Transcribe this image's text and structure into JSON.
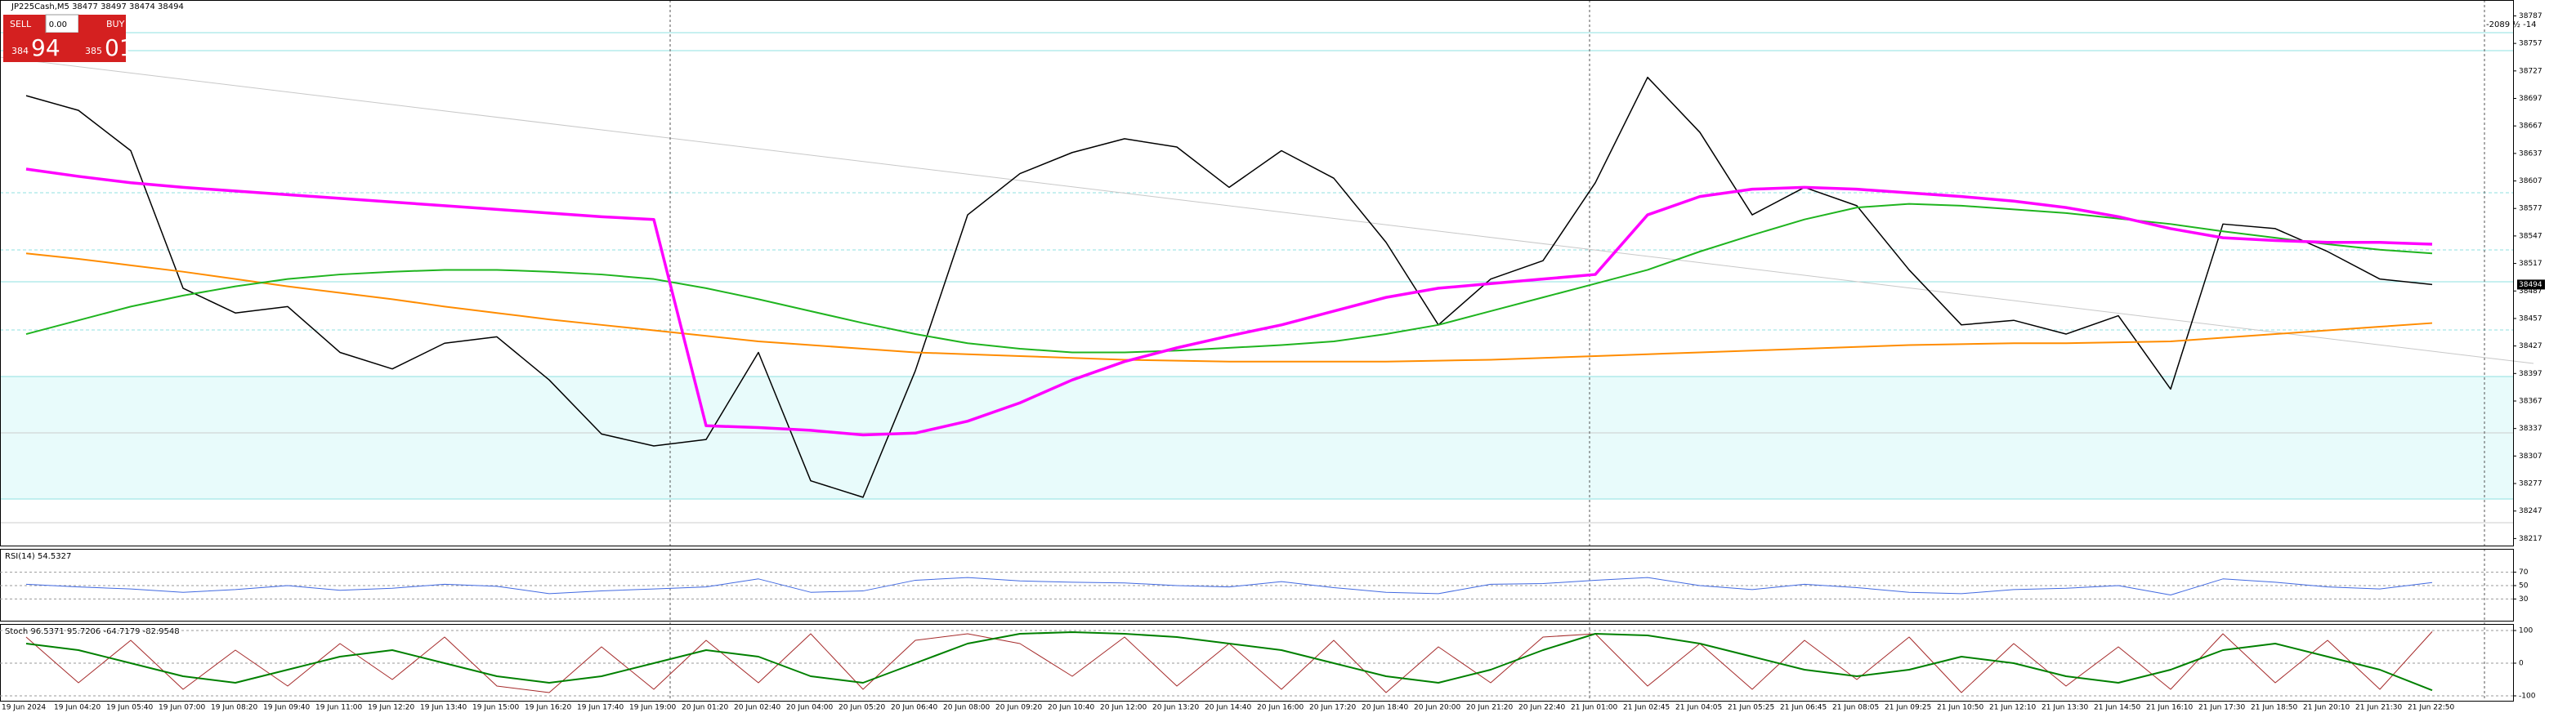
{
  "ui": {
    "sell": "SELL",
    "buy": "BUY",
    "lot": "0.00",
    "bid_big": "384",
    "bid_small": "94",
    "ask_big": "385",
    "ask_small": "01",
    "corner_info": "-2089 ½ -14"
  },
  "chart_data": [
    {
      "type": "line",
      "title": "JP225Cash,M5  38477 38497 38474 38494",
      "x": [
        "19 Jun 2024",
        "19 Jun 04:20",
        "19 Jun 05:40",
        "19 Jun 07:00",
        "19 Jun 08:20",
        "19 Jun 09:40",
        "19 Jun 11:00",
        "19 Jun 12:20",
        "19 Jun 13:40",
        "19 Jun 15:00",
        "19 Jun 16:20",
        "19 Jun 17:40",
        "19 Jun 19:00",
        "20 Jun 01:20",
        "20 Jun 02:40",
        "20 Jun 04:00",
        "20 Jun 05:20",
        "20 Jun 06:40",
        "20 Jun 08:00",
        "20 Jun 09:20",
        "20 Jun 10:40",
        "20 Jun 12:00",
        "20 Jun 13:20",
        "20 Jun 14:40",
        "20 Jun 16:00",
        "20 Jun 17:20",
        "20 Jun 18:40",
        "20 Jun 20:00",
        "20 Jun 21:20",
        "20 Jun 22:40",
        "21 Jun 01:00",
        "21 Jun 02:45",
        "21 Jun 04:05",
        "21 Jun 05:25",
        "21 Jun 06:45",
        "21 Jun 08:05",
        "21 Jun 09:25",
        "21 Jun 10:50",
        "21 Jun 12:10",
        "21 Jun 13:30",
        "21 Jun 14:50",
        "21 Jun 16:10",
        "21 Jun 17:30",
        "21 Jun 18:50",
        "21 Jun 20:10",
        "21 Jun 21:30",
        "21 Jun 22:50"
      ],
      "series": [
        {
          "color": "#000000",
          "width": 1.5,
          "values": [
            38700,
            38684,
            38640,
            38490,
            38463,
            38470,
            38420,
            38402,
            38430,
            38437,
            38390,
            38331,
            38318,
            38325,
            38420,
            38280,
            38262,
            38400,
            38570,
            38615,
            38638,
            38653,
            38644,
            38600,
            38640,
            38610,
            38540,
            38450,
            38500,
            38520,
            38605,
            38720,
            38660,
            38570,
            38600,
            38580,
            38510,
            38450,
            38455,
            38440,
            38460,
            38380,
            38560,
            38555,
            38530,
            38500,
            38494
          ]
        },
        {
          "color": "#ff8c00",
          "width": 2,
          "values": [
            38528,
            38522,
            38515,
            38508,
            38500,
            38492,
            38485,
            38478,
            38470,
            38463,
            38456,
            38450,
            38444,
            38438,
            38432,
            38428,
            38424,
            38420,
            38418,
            38416,
            38414,
            38412,
            38411,
            38410,
            38410,
            38410,
            38410,
            38411,
            38412,
            38414,
            38416,
            38418,
            38420,
            38422,
            38424,
            38426,
            38428,
            38429,
            38430,
            38430,
            38431,
            38432,
            38436,
            38440,
            38444,
            38448,
            38452
          ]
        },
        {
          "color": "#1fb41f",
          "width": 2,
          "values": [
            38440,
            38455,
            38470,
            38482,
            38492,
            38500,
            38505,
            38508,
            38510,
            38510,
            38508,
            38505,
            38500,
            38490,
            38478,
            38465,
            38452,
            38440,
            38430,
            38424,
            38420,
            38420,
            38422,
            38425,
            38428,
            38432,
            38440,
            38450,
            38465,
            38480,
            38495,
            38510,
            38530,
            38548,
            38565,
            38578,
            38582,
            38580,
            38576,
            38572,
            38566,
            38560,
            38552,
            38545,
            38538,
            38532,
            38528
          ]
        },
        {
          "color": "#ff00ff",
          "width": 3.5,
          "values": [
            38620,
            38612,
            38605,
            38600,
            38596,
            38592,
            38588,
            38584,
            38580,
            38576,
            38572,
            38568,
            38565,
            38340,
            38338,
            38335,
            38330,
            38332,
            38345,
            38365,
            38390,
            38410,
            38425,
            38438,
            38450,
            38465,
            38480,
            38490,
            38495,
            38500,
            38505,
            38570,
            38590,
            38598,
            38600,
            38598,
            38594,
            38590,
            38585,
            38578,
            38568,
            38555,
            38545,
            38542,
            38540,
            38540,
            38538
          ]
        }
      ],
      "ylim": [
        38212,
        38799
      ],
      "yticks": [
        38787,
        38757,
        38727,
        38697,
        38667,
        38637,
        38607,
        38577,
        38547,
        38517,
        38487,
        38457,
        38427,
        38397,
        38367,
        38337,
        38307,
        38277,
        38247,
        38217
      ],
      "current_price": 38494
    },
    {
      "type": "line",
      "title": "RSI(14) 54.5327",
      "series": [
        {
          "color": "#4169e1",
          "width": 1,
          "values": [
            52,
            48,
            45,
            40,
            44,
            50,
            43,
            46,
            52,
            49,
            38,
            42,
            45,
            48,
            60,
            40,
            42,
            58,
            62,
            57,
            55,
            54,
            50,
            48,
            56,
            47,
            40,
            38,
            52,
            53,
            58,
            62,
            50,
            44,
            52,
            47,
            40,
            38,
            44,
            46,
            50,
            36,
            60,
            55,
            48,
            45,
            54.5327
          ]
        }
      ],
      "ylim": [
        0,
        100
      ],
      "yticks": [
        70,
        50,
        30
      ]
    },
    {
      "type": "line",
      "title": "Stoch 96.5371 95.7206 -64.7179 -82.9548",
      "series": [
        {
          "color": "#a52a2a",
          "width": 1,
          "values": [
            80,
            -60,
            70,
            -80,
            40,
            -70,
            60,
            -50,
            80,
            -70,
            -90,
            50,
            -80,
            70,
            -60,
            90,
            -80,
            70,
            90,
            60,
            -40,
            80,
            -70,
            60,
            -80,
            70,
            -90,
            50,
            -60,
            80,
            90,
            -70,
            60,
            -80,
            70,
            -50,
            80,
            -90,
            60,
            -70,
            50,
            -80,
            90,
            -60,
            70,
            -80,
            96.5371
          ]
        },
        {
          "color": "#008000",
          "width": 2,
          "values": [
            60,
            40,
            0,
            -40,
            -60,
            -20,
            20,
            40,
            0,
            -40,
            -60,
            -40,
            0,
            40,
            20,
            -40,
            -60,
            0,
            60,
            90,
            95,
            90,
            80,
            60,
            40,
            0,
            -40,
            -60,
            -20,
            40,
            90,
            85,
            60,
            20,
            -20,
            -40,
            -20,
            20,
            0,
            -40,
            -60,
            -20,
            40,
            60,
            20,
            -20,
            -82.9548
          ]
        }
      ],
      "ylim": [
        -110,
        110
      ],
      "yticks": [
        100,
        0,
        -100
      ]
    }
  ]
}
